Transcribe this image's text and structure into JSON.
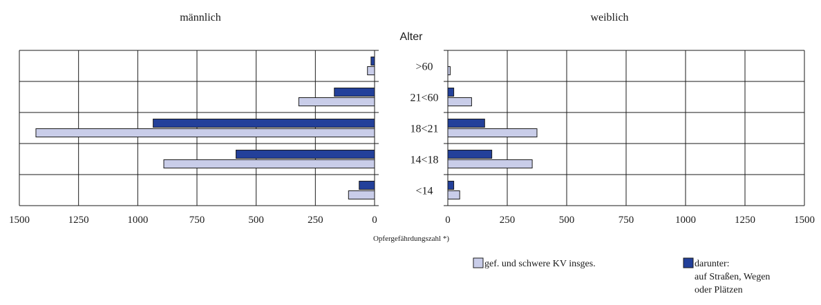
{
  "colors": {
    "total": "#c9cde9",
    "subset": "#23409a",
    "stroke": "#1a1a1a",
    "grid": "#1a1a1a",
    "background": "#ffffff"
  },
  "chart_data": {
    "type": "bar",
    "orientation": "horizontal-butterfly",
    "center_label": "Alter",
    "categories": [
      ">60",
      "21<60",
      "18<21",
      "14<18",
      "<14"
    ],
    "x_label": "Opfergefährdungszahl *)",
    "xlim": [
      0,
      1500
    ],
    "x_ticks": [
      0,
      250,
      500,
      750,
      1000,
      1250,
      1500
    ],
    "grid": true,
    "legend_position": "bottom-right",
    "panels": [
      {
        "title": "männlich",
        "direction": "left",
        "series": [
          {
            "name": "gef. und schwere KV insges.",
            "values": [
              30,
              320,
              1430,
              890,
              110
            ]
          },
          {
            "name": "darunter: auf Straßen, Wegen oder Plätzen",
            "values": [
              15,
              170,
              935,
              585,
              65
            ]
          }
        ]
      },
      {
        "title": "weiblich",
        "direction": "right",
        "series": [
          {
            "name": "gef. und schwere KV insges.",
            "values": [
              10,
              100,
              375,
              355,
              50
            ]
          },
          {
            "name": "darunter: auf Straßen, Wegen oder Plätzen",
            "values": [
              0,
              25,
              155,
              185,
              25
            ]
          }
        ]
      }
    ],
    "legend": [
      {
        "label": "gef. und schwere KV insges.",
        "series": 0
      },
      {
        "label_lines": [
          "darunter:",
          "auf Straßen, Wegen",
          "oder Plätzen"
        ],
        "series": 1
      }
    ]
  }
}
